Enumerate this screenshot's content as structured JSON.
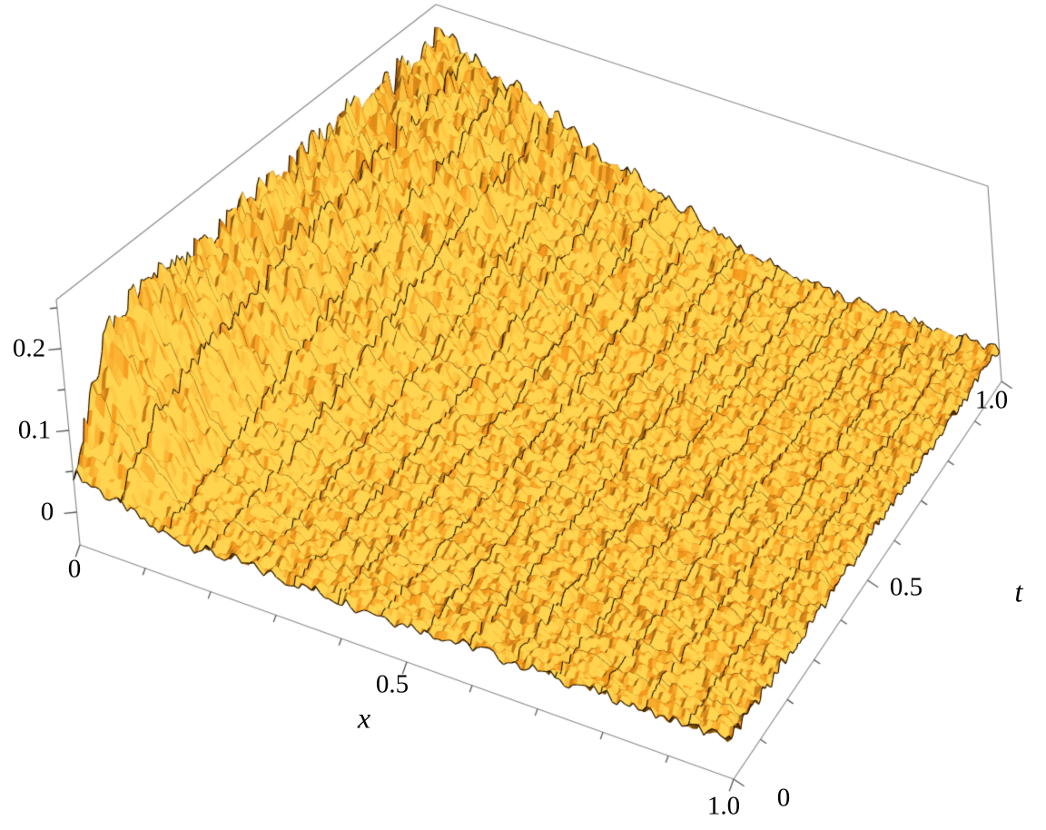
{
  "figure": {
    "background": "#FFFFFF"
  },
  "chart_data": {
    "type": "surface",
    "title": "",
    "xlabel": "x",
    "ylabel": "t",
    "zlabel": "",
    "x_range": [
      0,
      1
    ],
    "t_range": [
      0,
      1
    ],
    "z_box_range": [
      -0.04,
      0.26
    ],
    "z_clamp_max": 0.25,
    "x_ticks": {
      "major": {
        "values": [
          0,
          0.5,
          1
        ],
        "labels": [
          "0",
          "0.5",
          "1.0"
        ]
      },
      "minor_step": 0.1
    },
    "t_ticks": {
      "major": {
        "values": [
          0,
          0.5,
          1
        ],
        "labels": [
          "0",
          "0.5",
          "1.0"
        ]
      },
      "minor_step": 0.1
    },
    "z_ticks": {
      "major": {
        "values": [
          0,
          0.1,
          0.2
        ],
        "labels": [
          "0",
          "0.1",
          "0.2"
        ]
      },
      "minor_step": 0.05,
      "minor_max": 0.25
    },
    "mesh_divisions": 15,
    "colors": {
      "surface_light": "#FFD44E",
      "surface_mid": "#F79A1C",
      "surface_dark": "#2E1A02",
      "mesh_line": "#1C1004",
      "box_edge": "#8A8A8A",
      "tick": "#555555",
      "background": "#FFFFFF",
      "label": "#000000"
    },
    "surface_grid": {
      "x": [
        0,
        0.125,
        0.25,
        0.375,
        0.5,
        0.625,
        0.75,
        0.875,
        1
      ],
      "t": [
        0,
        0.125,
        0.25,
        0.375,
        0.5,
        0.625,
        0.75,
        0.875,
        1
      ],
      "z": [
        [
          0.05,
          0.012,
          0.01,
          0.01,
          0.01,
          0.01,
          0.01,
          0.01,
          0.01
        ],
        [
          0.18,
          0.03,
          0.012,
          0.01,
          0.01,
          0.01,
          0.01,
          0.01,
          0.01
        ],
        [
          0.2,
          0.05,
          0.015,
          0.012,
          0.01,
          0.01,
          0.01,
          0.01,
          0.01
        ],
        [
          0.19,
          0.08,
          0.03,
          0.015,
          0.012,
          0.01,
          0.01,
          0.01,
          0.01
        ],
        [
          0.21,
          0.11,
          0.05,
          0.02,
          0.015,
          0.012,
          0.01,
          0.01,
          0.01
        ],
        [
          0.2,
          0.13,
          0.07,
          0.035,
          0.02,
          0.012,
          0.01,
          0.01,
          0.01
        ],
        [
          0.21,
          0.15,
          0.09,
          0.05,
          0.03,
          0.015,
          0.012,
          0.01,
          0.01
        ],
        [
          0.21,
          0.17,
          0.11,
          0.07,
          0.04,
          0.02,
          0.012,
          0.01,
          0.01
        ],
        [
          0.22,
          0.18,
          0.13,
          0.09,
          0.05,
          0.025,
          0.015,
          0.012,
          0.01
        ]
      ]
    },
    "noise": {
      "base_amplitude": 0.011,
      "value_scale": 10
    }
  }
}
